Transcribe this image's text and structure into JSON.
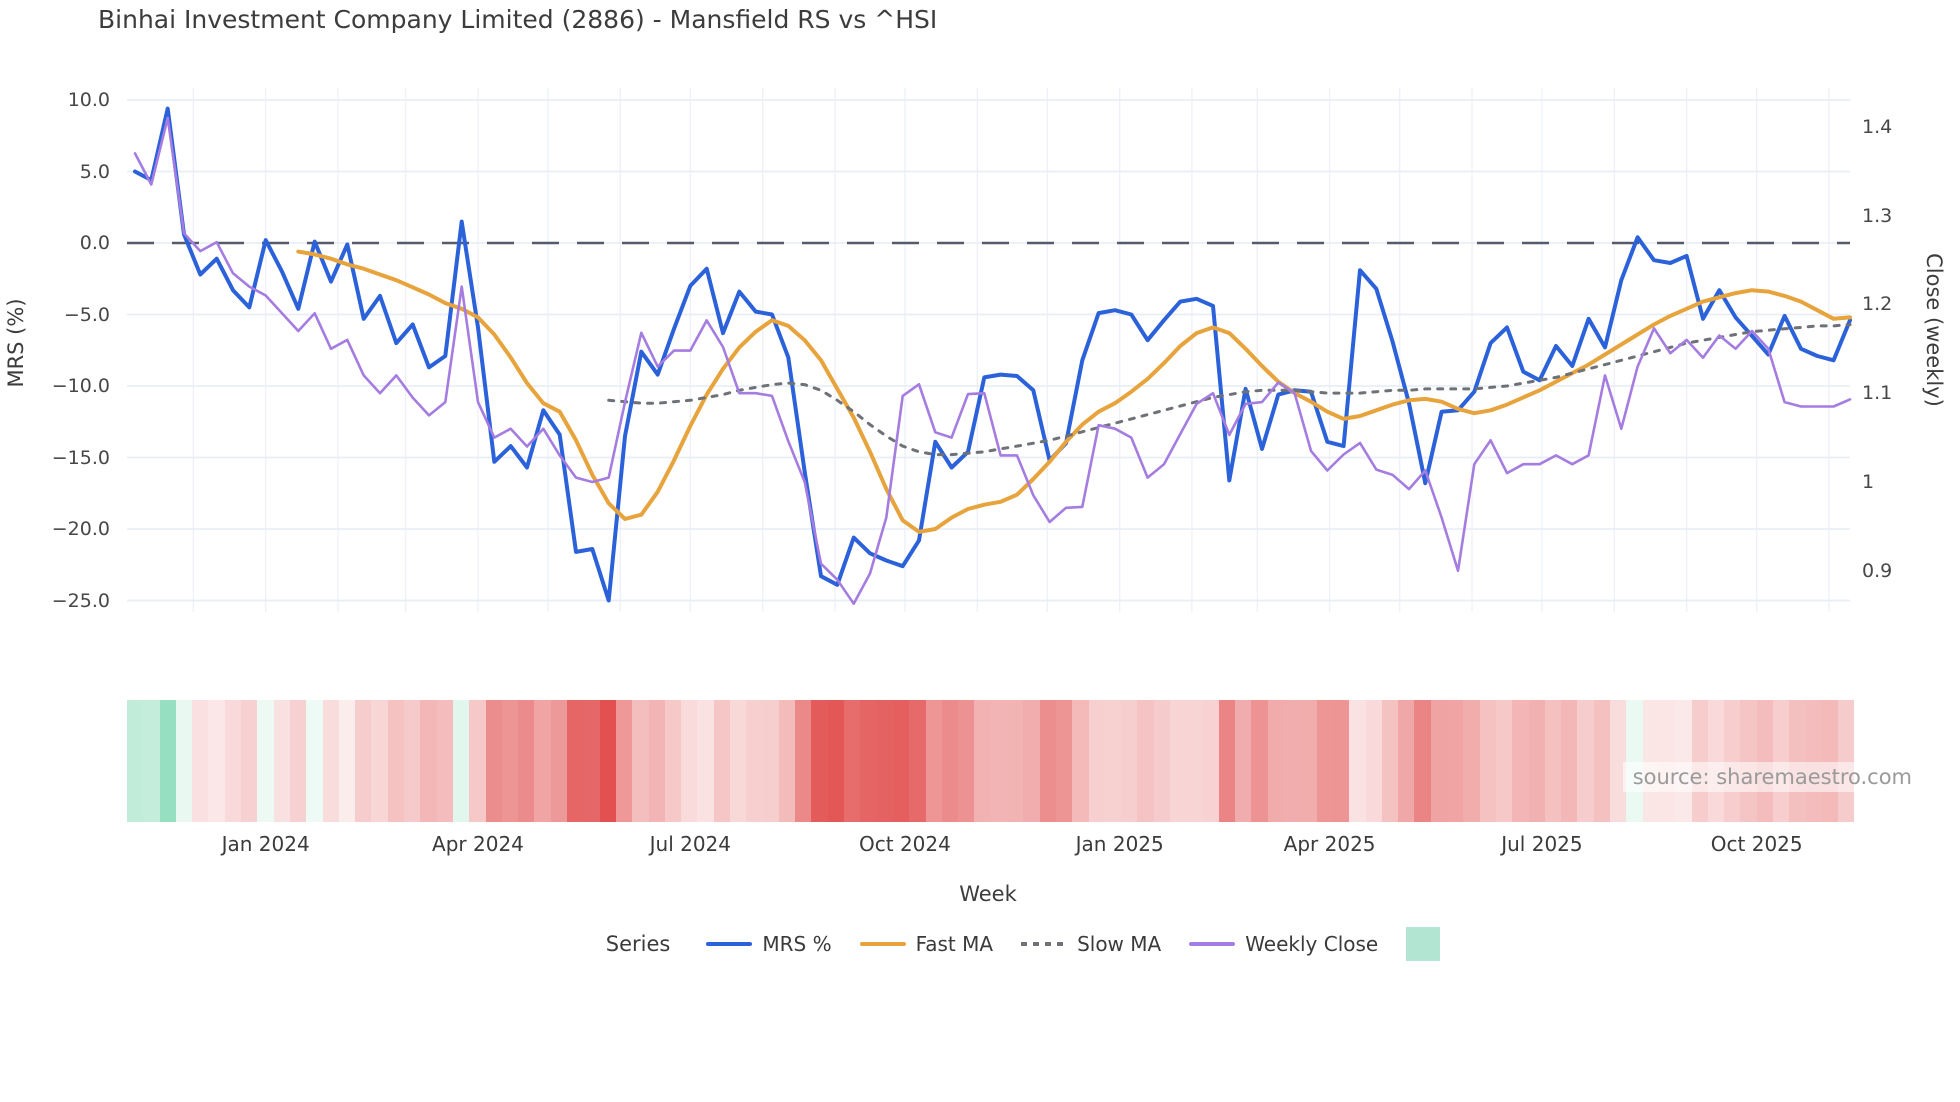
{
  "title": "Binhai Investment Company Limited (2886) - Mansfield RS vs ^HSI",
  "source": "source: sharemaestro.com",
  "axes": {
    "left_label": "MRS (%)",
    "right_label": "Close (weekly)",
    "x_label": "Week",
    "left_ticks": [
      {
        "v": 10,
        "label": "10.0"
      },
      {
        "v": 5,
        "label": "5.0"
      },
      {
        "v": 0,
        "label": "0.0"
      },
      {
        "v": -5,
        "label": "−5.0"
      },
      {
        "v": -10,
        "label": "−10.0"
      },
      {
        "v": -15,
        "label": "−15.0"
      },
      {
        "v": -20,
        "label": "−20.0"
      },
      {
        "v": -25,
        "label": "−25.0"
      }
    ],
    "right_ticks": [
      {
        "v": 1.4,
        "label": "1.4"
      },
      {
        "v": 1.3,
        "label": "1.3"
      },
      {
        "v": 1.2,
        "label": "1.2"
      },
      {
        "v": 1.1,
        "label": "1.1"
      },
      {
        "v": 1.0,
        "label": "1"
      },
      {
        "v": 0.9,
        "label": "0.9"
      }
    ],
    "x_ticks": [
      {
        "week": 8.0,
        "label": "Jan 2024"
      },
      {
        "week": 21.0,
        "label": "Apr 2024"
      },
      {
        "week": 34.0,
        "label": "Jul 2024"
      },
      {
        "week": 47.14,
        "label": "Oct 2024"
      },
      {
        "week": 60.29,
        "label": "Jan 2025"
      },
      {
        "week": 73.14,
        "label": "Apr 2025"
      },
      {
        "week": 86.14,
        "label": "Jul 2025"
      },
      {
        "week": 99.29,
        "label": "Oct 2025"
      }
    ]
  },
  "legend": {
    "title": "Series",
    "items": [
      {
        "label": "MRS %",
        "swatch": "line",
        "color": "#2b62d9"
      },
      {
        "label": "Fast MA",
        "swatch": "line",
        "color": "#e7a33c"
      },
      {
        "label": "Slow MA",
        "swatch": "dashes",
        "color": "#6e7177"
      },
      {
        "label": "Weekly Close",
        "swatch": "line",
        "color": "#a57ce0"
      },
      {
        "label": "",
        "swatch": "square",
        "color": "#b2e6d2"
      }
    ]
  },
  "colors": {
    "mrs": "#2b62d9",
    "fast_ma": "#e7a33c",
    "slow_ma": "#6e7177",
    "close": "#a57ce0",
    "zero_line": "#555b6c",
    "grid_h": "#e9eef6",
    "grid_v": "#eef2f8",
    "strip_green_max": "#96dfc0",
    "strip_red_max": "#e25050"
  },
  "chart_data": {
    "type": "line",
    "x_unit": "week_index",
    "n_weeks": 106,
    "y_left_range": [
      -25,
      10
    ],
    "y_right_range": [
      0.9,
      1.4
    ],
    "grid": "horizontal-major + faint monthly vertical",
    "legend_position": "bottom",
    "zero_reference_line": 0,
    "month_grid_weeks": [
      3.57,
      8,
      12.43,
      16.57,
      21,
      25.29,
      29.71,
      34,
      38.43,
      42.86,
      47.14,
      51.57,
      55.86,
      60.29,
      64.71,
      68.71,
      73.14,
      77.43,
      81.86,
      86.14,
      90.57,
      95,
      99.29,
      103.71
    ],
    "heatmap_strip": "per-week cell colored by MRS %: green when positive (scaled to +9.4), red when negative (scaled to -25)",
    "series": [
      {
        "name": "MRS %",
        "axis": "left",
        "style": "solid",
        "width": 4,
        "color": "#2b62d9",
        "values": [
          5.0,
          4.4,
          9.4,
          0.6,
          -2.2,
          -1.1,
          -3.3,
          -4.5,
          0.2,
          -2.0,
          -4.6,
          0.1,
          -2.7,
          -0.1,
          -5.3,
          -3.7,
          -7.0,
          -5.7,
          -8.7,
          -7.9,
          1.5,
          -5.9,
          -15.3,
          -14.2,
          -15.7,
          -11.7,
          -13.4,
          -21.6,
          -21.4,
          -25.0,
          -13.5,
          -7.6,
          -9.2,
          -6.0,
          -3.0,
          -1.8,
          -6.3,
          -3.4,
          -4.8,
          -5.0,
          -8.0,
          -16.0,
          -23.3,
          -23.9,
          -20.6,
          -21.7,
          -22.2,
          -22.6,
          -20.8,
          -13.9,
          -15.7,
          -14.6,
          -9.4,
          -9.2,
          -9.3,
          -10.3,
          -15.2,
          -14.0,
          -8.2,
          -4.9,
          -4.7,
          -5.0,
          -6.8,
          -5.4,
          -4.1,
          -3.9,
          -4.4,
          -16.6,
          -10.2,
          -14.4,
          -10.6,
          -10.3,
          -10.4,
          -13.9,
          -14.2,
          -1.9,
          -3.2,
          -6.9,
          -11.2,
          -16.8,
          -11.8,
          -11.7,
          -10.4,
          -7.0,
          -5.9,
          -9.0,
          -9.6,
          -7.2,
          -8.6,
          -5.3,
          -7.3,
          -2.6,
          0.4,
          -1.2,
          -1.4,
          -0.9,
          -5.3,
          -3.3,
          -5.2,
          -6.5,
          -7.8,
          -5.1,
          -7.4,
          -7.9,
          -8.2,
          -5.4
        ]
      },
      {
        "name": "Fast MA",
        "axis": "left",
        "style": "solid",
        "width": 4,
        "color": "#e7a33c",
        "values": [
          null,
          null,
          null,
          null,
          null,
          null,
          null,
          null,
          null,
          null,
          -0.6,
          -0.8,
          -1.1,
          -1.5,
          -1.8,
          -2.2,
          -2.6,
          -3.1,
          -3.6,
          -4.2,
          -4.6,
          -5.2,
          -6.4,
          -8.0,
          -9.8,
          -11.2,
          -11.8,
          -13.8,
          -16.2,
          -18.2,
          -19.3,
          -19.0,
          -17.4,
          -15.2,
          -12.8,
          -10.6,
          -8.8,
          -7.3,
          -6.2,
          -5.4,
          -5.8,
          -6.8,
          -8.2,
          -10.2,
          -12.2,
          -14.6,
          -17.2,
          -19.4,
          -20.2,
          -20.0,
          -19.2,
          -18.6,
          -18.3,
          -18.1,
          -17.6,
          -16.5,
          -15.3,
          -13.9,
          -12.7,
          -11.8,
          -11.2,
          -10.4,
          -9.5,
          -8.4,
          -7.2,
          -6.3,
          -5.9,
          -6.3,
          -7.4,
          -8.6,
          -9.7,
          -10.5,
          -11.1,
          -11.8,
          -12.3,
          -12.1,
          -11.7,
          -11.3,
          -11.0,
          -10.9,
          -11.1,
          -11.6,
          -11.9,
          -11.7,
          -11.3,
          -10.8,
          -10.3,
          -9.7,
          -9.1,
          -8.5,
          -7.8,
          -7.1,
          -6.4,
          -5.7,
          -5.1,
          -4.6,
          -4.1,
          -3.8,
          -3.5,
          -3.3,
          -3.4,
          -3.7,
          -4.1,
          -4.7,
          -5.3,
          -5.2
        ]
      },
      {
        "name": "Slow MA",
        "axis": "left",
        "style": "dashed",
        "width": 3,
        "color": "#6e7177",
        "values": [
          null,
          null,
          null,
          null,
          null,
          null,
          null,
          null,
          null,
          null,
          null,
          null,
          null,
          null,
          null,
          null,
          null,
          null,
          null,
          null,
          null,
          null,
          null,
          null,
          null,
          null,
          null,
          null,
          null,
          -11.0,
          -11.1,
          -11.2,
          -11.2,
          -11.1,
          -11.0,
          -10.8,
          -10.6,
          -10.3,
          -10.1,
          -9.9,
          -9.8,
          -9.9,
          -10.3,
          -11.0,
          -11.8,
          -12.7,
          -13.5,
          -14.2,
          -14.6,
          -14.8,
          -14.8,
          -14.7,
          -14.6,
          -14.4,
          -14.2,
          -14.0,
          -13.8,
          -13.5,
          -13.2,
          -12.9,
          -12.6,
          -12.3,
          -12.0,
          -11.7,
          -11.4,
          -11.1,
          -10.8,
          -10.6,
          -10.4,
          -10.3,
          -10.3,
          -10.3,
          -10.4,
          -10.5,
          -10.5,
          -10.5,
          -10.4,
          -10.3,
          -10.3,
          -10.2,
          -10.2,
          -10.2,
          -10.2,
          -10.1,
          -10.0,
          -9.8,
          -9.6,
          -9.4,
          -9.1,
          -8.8,
          -8.5,
          -8.2,
          -7.9,
          -7.6,
          -7.3,
          -7.0,
          -6.8,
          -6.6,
          -6.4,
          -6.2,
          -6.1,
          -6.0,
          -5.9,
          -5.8,
          -5.8,
          -5.7
        ]
      },
      {
        "name": "Weekly Close",
        "axis": "right",
        "style": "solid",
        "width": 2.6,
        "color": "#a57ce0",
        "values": [
          1.37,
          1.335,
          1.41,
          1.28,
          1.26,
          1.27,
          1.235,
          1.22,
          1.21,
          1.19,
          1.17,
          1.19,
          1.15,
          1.16,
          1.12,
          1.1,
          1.12,
          1.095,
          1.075,
          1.09,
          1.22,
          1.09,
          1.05,
          1.06,
          1.04,
          1.06,
          1.03,
          1.005,
          1.0,
          1.005,
          1.09,
          1.168,
          1.13,
          1.148,
          1.148,
          1.182,
          1.152,
          1.1,
          1.1,
          1.097,
          1.046,
          1.0,
          0.908,
          0.89,
          0.863,
          0.897,
          0.96,
          1.097,
          1.11,
          1.056,
          1.05,
          1.099,
          1.1,
          1.03,
          1.03,
          0.985,
          0.955,
          0.971,
          0.972,
          1.064,
          1.06,
          1.05,
          1.005,
          1.02,
          1.054,
          1.088,
          1.1,
          1.053,
          1.088,
          1.09,
          1.112,
          1.1,
          1.035,
          1.013,
          1.031,
          1.044,
          1.014,
          1.008,
          0.992,
          1.013,
          0.96,
          0.9,
          1.02,
          1.047,
          1.01,
          1.02,
          1.02,
          1.03,
          1.02,
          1.03,
          1.12,
          1.06,
          1.13,
          1.173,
          1.145,
          1.16,
          1.14,
          1.165,
          1.15,
          1.17,
          1.15,
          1.09,
          1.085,
          1.085,
          1.085,
          1.093
        ]
      }
    ]
  }
}
